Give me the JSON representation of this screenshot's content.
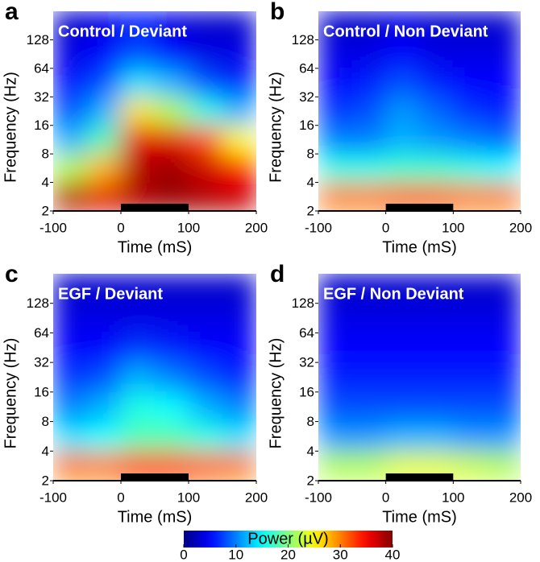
{
  "chart_data": [
    {
      "type": "heatmap",
      "panel_label": "a",
      "title": "Control / Deviant",
      "xlabel": "Time (mS)",
      "ylabel": "Frequency (Hz)",
      "xlim": [
        -100,
        200
      ],
      "xticks": [
        -100,
        0,
        100,
        200
      ],
      "ylim": [
        2,
        256
      ],
      "yticks": [
        2,
        4,
        8,
        16,
        32,
        64,
        128
      ],
      "log_y": true,
      "x_edges": [
        -100,
        -50,
        0,
        50,
        100,
        150,
        200
      ],
      "y_edges": [
        2,
        4,
        8,
        16,
        32,
        64,
        128,
        256
      ],
      "stimulus": [
        0,
        100
      ],
      "z": [
        [
          38,
          36,
          38,
          39,
          38,
          37
        ],
        [
          22,
          28,
          38,
          39,
          37,
          35
        ],
        [
          12,
          18,
          36,
          36,
          32,
          25
        ],
        [
          8,
          12,
          26,
          22,
          16,
          12
        ],
        [
          5,
          8,
          14,
          12,
          8,
          6
        ],
        [
          4,
          5,
          8,
          5,
          4,
          4
        ],
        [
          3,
          4,
          6,
          4,
          3,
          3
        ]
      ]
    },
    {
      "type": "heatmap",
      "panel_label": "b",
      "title": "Control / Non Deviant",
      "xlabel": "Time (mS)",
      "ylabel": "Frequency (Hz)",
      "xlim": [
        -100,
        200
      ],
      "xticks": [
        -100,
        0,
        100,
        200
      ],
      "ylim": [
        2,
        256
      ],
      "yticks": [
        2,
        4,
        8,
        16,
        32,
        64,
        128
      ],
      "log_y": true,
      "x_edges": [
        -100,
        -50,
        0,
        50,
        100,
        150,
        200
      ],
      "y_edges": [
        2,
        4,
        8,
        16,
        32,
        64,
        128,
        256
      ],
      "stimulus": [
        0,
        100
      ],
      "z": [
        [
          30,
          30,
          31,
          31,
          30,
          30
        ],
        [
          16,
          16,
          17,
          17,
          16,
          15
        ],
        [
          10,
          10,
          12,
          11,
          10,
          9
        ],
        [
          7,
          8,
          11,
          9,
          7,
          6
        ],
        [
          5,
          6,
          8,
          6,
          5,
          5
        ],
        [
          4,
          4,
          5,
          4,
          4,
          4
        ],
        [
          3,
          3,
          4,
          3,
          3,
          3
        ]
      ]
    },
    {
      "type": "heatmap",
      "panel_label": "c",
      "title": "EGF / Deviant",
      "xlabel": "Time (mS)",
      "ylabel": "Frequency (Hz)",
      "xlim": [
        -100,
        200
      ],
      "xticks": [
        -100,
        0,
        100,
        200
      ],
      "ylim": [
        2,
        256
      ],
      "yticks": [
        2,
        4,
        8,
        16,
        32,
        64,
        128
      ],
      "log_y": true,
      "x_edges": [
        -100,
        -50,
        0,
        50,
        100,
        150,
        200
      ],
      "y_edges": [
        2,
        4,
        8,
        16,
        32,
        64,
        128,
        256
      ],
      "stimulus": [
        0,
        100
      ],
      "z": [
        [
          30,
          30,
          32,
          32,
          31,
          30
        ],
        [
          14,
          15,
          18,
          18,
          16,
          14
        ],
        [
          10,
          12,
          16,
          15,
          12,
          10
        ],
        [
          7,
          8,
          12,
          10,
          8,
          6
        ],
        [
          5,
          5,
          7,
          6,
          5,
          5
        ],
        [
          4,
          4,
          4,
          4,
          4,
          4
        ],
        [
          3,
          3,
          3,
          3,
          3,
          3
        ]
      ]
    },
    {
      "type": "heatmap",
      "panel_label": "d",
      "title": "EGF / Non Deviant",
      "xlabel": "Time (mS)",
      "ylabel": "Frequency (Hz)",
      "xlim": [
        -100,
        200
      ],
      "xticks": [
        -100,
        0,
        100,
        200
      ],
      "ylim": [
        2,
        256
      ],
      "yticks": [
        2,
        4,
        8,
        16,
        32,
        64,
        128
      ],
      "log_y": true,
      "x_edges": [
        -100,
        -50,
        0,
        50,
        100,
        150,
        200
      ],
      "y_edges": [
        2,
        4,
        8,
        16,
        32,
        64,
        128,
        256
      ],
      "stimulus": [
        0,
        100
      ],
      "z": [
        [
          22,
          22,
          24,
          24,
          23,
          22
        ],
        [
          11,
          11,
          12,
          12,
          11,
          11
        ],
        [
          8,
          8,
          8,
          8,
          8,
          8
        ],
        [
          6,
          6,
          6,
          6,
          6,
          6
        ],
        [
          5,
          5,
          5,
          5,
          5,
          5
        ],
        [
          4,
          4,
          4,
          4,
          4,
          4
        ],
        [
          3,
          3,
          3,
          3,
          3,
          3
        ]
      ]
    }
  ],
  "colorbar": {
    "label": "Power (µV)",
    "clim": [
      0,
      40
    ],
    "ticks": [
      0,
      10,
      20,
      30,
      40
    ],
    "colormap": "jet"
  }
}
